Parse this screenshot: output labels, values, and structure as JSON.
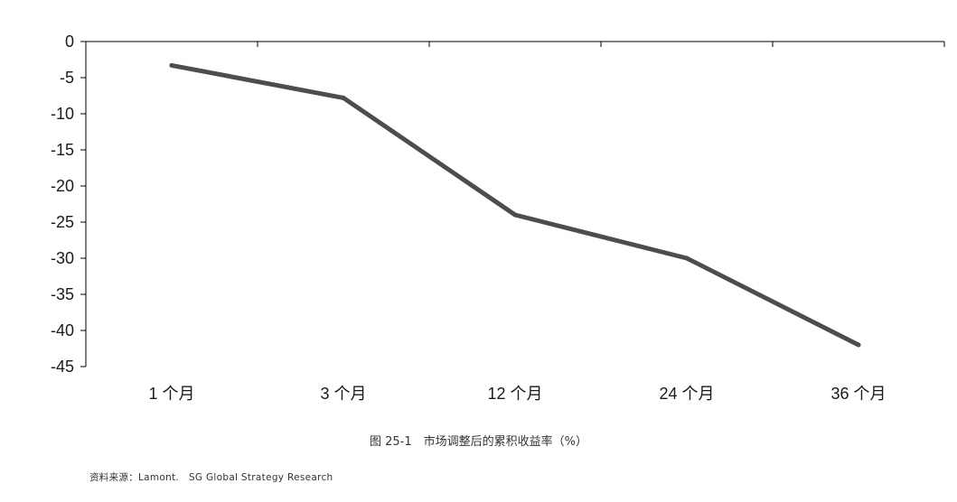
{
  "chart_data": {
    "type": "line",
    "categories": [
      "1 个月",
      "3 个月",
      "12 个月",
      "24 个月",
      "36 个月"
    ],
    "values": [
      -3.3,
      -7.8,
      -24,
      -30,
      -42
    ],
    "ylim": [
      -45,
      0
    ],
    "yticks": [
      "0",
      "-5",
      "-10",
      "-15",
      "-20",
      "-25",
      "-30",
      "-35",
      "-40",
      "-45"
    ],
    "ytick_values": [
      0,
      -5,
      -10,
      -15,
      -20,
      -25,
      -30,
      -35,
      -40,
      -45
    ],
    "grid": false,
    "line_color": "#4d4d4d",
    "axis_color": "#000000"
  },
  "caption": "图 25-1　市场调整后的累积收益率（%）",
  "source": "资料来源：Lamont.　SG Global Strategy Research"
}
